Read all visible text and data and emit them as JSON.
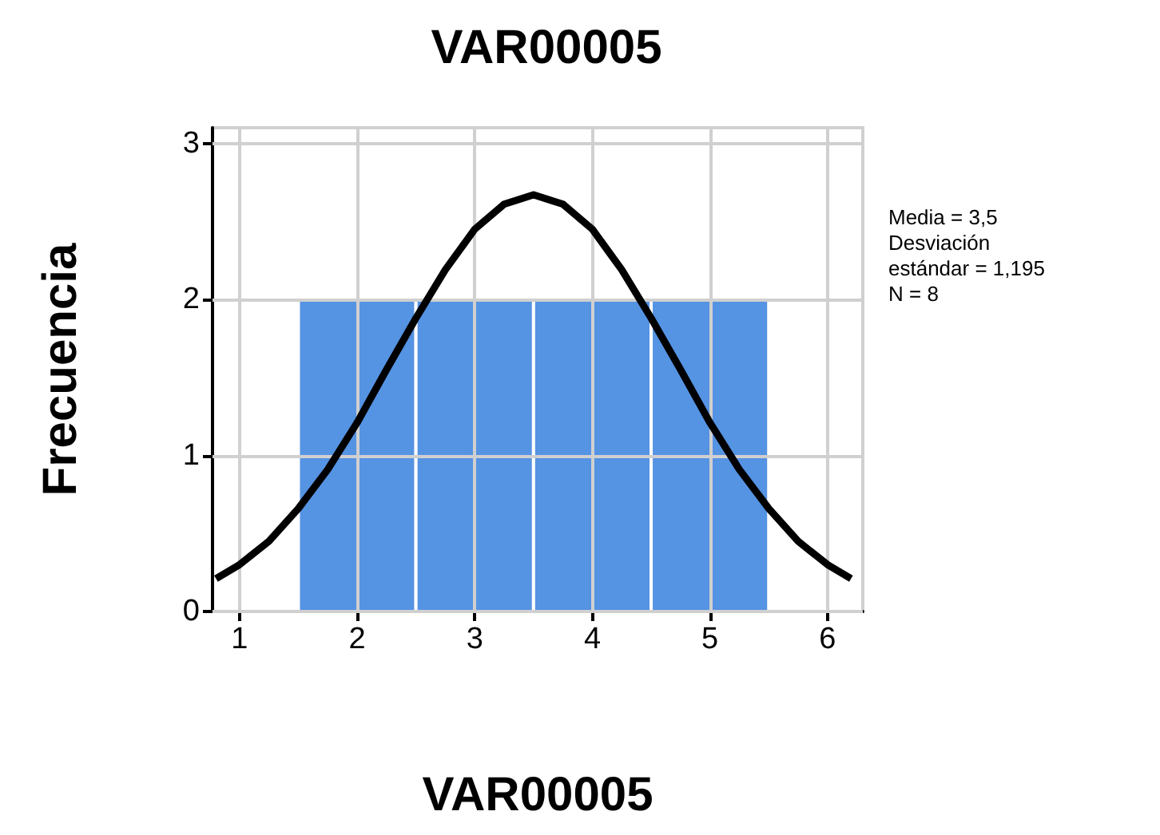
{
  "chart_data": {
    "type": "histogram",
    "title": "VAR00005",
    "xlabel": "VAR00005",
    "ylabel": "Frecuencia",
    "bins": [
      1.5,
      2.5,
      3.5,
      4.5,
      5.5
    ],
    "values": [
      2,
      2,
      2,
      2
    ],
    "color": "#5593e3",
    "series": [
      {
        "type": "line",
        "color": "#000000",
        "x": [
          0.8,
          1.0,
          1.25,
          1.5,
          1.75,
          2.0,
          2.25,
          2.5,
          2.75,
          3.0,
          3.25,
          3.5,
          3.75,
          4.0,
          4.25,
          4.5,
          4.75,
          5.0,
          5.25,
          5.5,
          5.75,
          6.0,
          6.2
        ],
        "values": [
          0.21,
          0.3,
          0.45,
          0.66,
          0.91,
          1.21,
          1.55,
          1.88,
          2.19,
          2.45,
          2.61,
          2.67,
          2.61,
          2.45,
          2.19,
          1.88,
          1.55,
          1.21,
          0.91,
          0.66,
          0.45,
          0.3,
          0.21
        ]
      }
    ],
    "annotations": [
      "Media = 3,5",
      "Desviación estándar = 1,195",
      "N = 8"
    ],
    "xlim": [
      0.77,
      6.3
    ],
    "xticks": [
      1,
      2,
      3,
      4,
      5,
      6
    ],
    "ylim": [
      0,
      3.1
    ],
    "yticks": [
      0,
      1,
      2,
      3
    ],
    "grid": true,
    "marker": "none"
  }
}
